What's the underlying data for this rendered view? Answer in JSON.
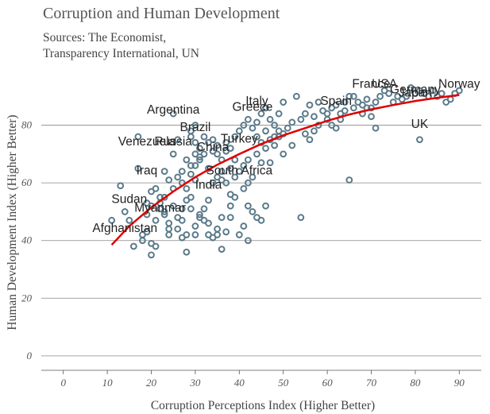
{
  "header": {
    "title": "Corruption and Human Development",
    "subtitle_lines": [
      "Sources: The Economist,",
      "Transparency International, UN"
    ]
  },
  "chart_data": {
    "type": "scatter",
    "title": "Corruption and Human Development",
    "subtitle": "Sources: The Economist, Transparency International, UN",
    "xlabel": "Corruption Perceptions Index (Higher Better)",
    "ylabel": "Human Development Index (Higher Better)",
    "xlim": [
      -5,
      95
    ],
    "ylim": [
      -5,
      100
    ],
    "xticks": [
      0,
      10,
      20,
      30,
      40,
      50,
      60,
      70,
      80,
      90
    ],
    "yticks": [
      0,
      20,
      40,
      60,
      80
    ],
    "grid": "horizontal",
    "colors": {
      "points": "#5b7a8a",
      "trend": "#dd0000",
      "grid": "#888888"
    },
    "points": [
      [
        17,
        76
      ],
      [
        20,
        52
      ],
      [
        19,
        49
      ],
      [
        21,
        47
      ],
      [
        22,
        51
      ],
      [
        23,
        50
      ],
      [
        25,
        52
      ],
      [
        24,
        44
      ],
      [
        22,
        55
      ],
      [
        20,
        57
      ],
      [
        19,
        53
      ],
      [
        18,
        42
      ],
      [
        18,
        40
      ],
      [
        20,
        39
      ],
      [
        21,
        38
      ],
      [
        20,
        35
      ],
      [
        19,
        43
      ],
      [
        23,
        64
      ],
      [
        25,
        70
      ],
      [
        26,
        75
      ],
      [
        27,
        60
      ],
      [
        28,
        58
      ],
      [
        29,
        63
      ],
      [
        30,
        66
      ],
      [
        31,
        68
      ],
      [
        32,
        70
      ],
      [
        30,
        61
      ],
      [
        29,
        55
      ],
      [
        27,
        47
      ],
      [
        26,
        44
      ],
      [
        27,
        41
      ],
      [
        28,
        42
      ],
      [
        30,
        45
      ],
      [
        31,
        48
      ],
      [
        32,
        51
      ],
      [
        33,
        54
      ],
      [
        30,
        74
      ],
      [
        29,
        78
      ],
      [
        30,
        80
      ],
      [
        31,
        72
      ],
      [
        33,
        74
      ],
      [
        34,
        71
      ],
      [
        35,
        73
      ],
      [
        36,
        68
      ],
      [
        37,
        74
      ],
      [
        38,
        72
      ],
      [
        39,
        76
      ],
      [
        40,
        78
      ],
      [
        41,
        80
      ],
      [
        42,
        82
      ],
      [
        43,
        79
      ],
      [
        44,
        81
      ],
      [
        45,
        84
      ],
      [
        46,
        86
      ],
      [
        47,
        82
      ],
      [
        48,
        80
      ],
      [
        49,
        84
      ],
      [
        50,
        88
      ],
      [
        42,
        68
      ],
      [
        44,
        70
      ],
      [
        45,
        67
      ],
      [
        46,
        72
      ],
      [
        47,
        75
      ],
      [
        48,
        76
      ],
      [
        49,
        78
      ],
      [
        50,
        77
      ],
      [
        51,
        79
      ],
      [
        52,
        81
      ],
      [
        53,
        90
      ],
      [
        54,
        82
      ],
      [
        55,
        84
      ],
      [
        56,
        87
      ],
      [
        57,
        83
      ],
      [
        58,
        88
      ],
      [
        59,
        85
      ],
      [
        60,
        84
      ],
      [
        61,
        86
      ],
      [
        62,
        87
      ],
      [
        63,
        84
      ],
      [
        64,
        88
      ],
      [
        65,
        90
      ],
      [
        66,
        86
      ],
      [
        67,
        88
      ],
      [
        68,
        87
      ],
      [
        69,
        89
      ],
      [
        70,
        86
      ],
      [
        71,
        88
      ],
      [
        72,
        90
      ],
      [
        73,
        92
      ],
      [
        74,
        91
      ],
      [
        75,
        88
      ],
      [
        76,
        90
      ],
      [
        77,
        89
      ],
      [
        78,
        90
      ],
      [
        79,
        93
      ],
      [
        80,
        91
      ],
      [
        81,
        92
      ],
      [
        82,
        91
      ],
      [
        83,
        90
      ],
      [
        84,
        92
      ],
      [
        85,
        90
      ],
      [
        86,
        91
      ],
      [
        87,
        88
      ],
      [
        88,
        89
      ],
      [
        89,
        91
      ],
      [
        90,
        92
      ],
      [
        81,
        75
      ],
      [
        71,
        79
      ],
      [
        65,
        61
      ],
      [
        62,
        79
      ],
      [
        56,
        75
      ],
      [
        55,
        77
      ],
      [
        52,
        73
      ],
      [
        47,
        67
      ],
      [
        45,
        47
      ],
      [
        42,
        40
      ],
      [
        41,
        45
      ],
      [
        40,
        42
      ],
      [
        38,
        48
      ],
      [
        37,
        43
      ],
      [
        35,
        44
      ],
      [
        34,
        41
      ],
      [
        33,
        42
      ],
      [
        32,
        47
      ],
      [
        36,
        48
      ],
      [
        38,
        52
      ],
      [
        39,
        55
      ],
      [
        41,
        58
      ],
      [
        42,
        52
      ],
      [
        43,
        50
      ],
      [
        44,
        48
      ],
      [
        46,
        52
      ],
      [
        54,
        48
      ],
      [
        33,
        65
      ],
      [
        34,
        60
      ],
      [
        35,
        62
      ],
      [
        36,
        64
      ],
      [
        37,
        60
      ],
      [
        38,
        56
      ],
      [
        39,
        62
      ],
      [
        40,
        64
      ],
      [
        41,
        66
      ],
      [
        42,
        60
      ],
      [
        43,
        62
      ],
      [
        28,
        68
      ],
      [
        29,
        66
      ],
      [
        27,
        64
      ],
      [
        26,
        62
      ],
      [
        25,
        58
      ],
      [
        24,
        61
      ],
      [
        23,
        55
      ],
      [
        22,
        53
      ],
      [
        21,
        58
      ],
      [
        13,
        59
      ],
      [
        17,
        65
      ],
      [
        11,
        47
      ],
      [
        14,
        50
      ],
      [
        15,
        47
      ],
      [
        25,
        84
      ],
      [
        29,
        76
      ],
      [
        16,
        38
      ],
      [
        24,
        42
      ],
      [
        36,
        61
      ],
      [
        30,
        70
      ],
      [
        31,
        69
      ],
      [
        32,
        76
      ],
      [
        34,
        75
      ],
      [
        35,
        70
      ],
      [
        37,
        71
      ],
      [
        38,
        65
      ],
      [
        39,
        68
      ],
      [
        31,
        49
      ],
      [
        33,
        46
      ],
      [
        28,
        54
      ],
      [
        29,
        51
      ],
      [
        26,
        48
      ],
      [
        27,
        51
      ],
      [
        24,
        46
      ],
      [
        23,
        49
      ],
      [
        30,
        42
      ],
      [
        35,
        42
      ],
      [
        36,
        37
      ],
      [
        28,
        36
      ],
      [
        44,
        76
      ],
      [
        45,
        74
      ],
      [
        46,
        78
      ],
      [
        48,
        73
      ],
      [
        49,
        76
      ],
      [
        50,
        70
      ],
      [
        57,
        78
      ],
      [
        58,
        80
      ],
      [
        60,
        82
      ],
      [
        61,
        80
      ],
      [
        63,
        82
      ],
      [
        64,
        85
      ],
      [
        66,
        90
      ],
      [
        68,
        84
      ],
      [
        69,
        86
      ],
      [
        70,
        83
      ]
    ],
    "trend_line": [
      [
        11,
        38.5
      ],
      [
        15,
        45
      ],
      [
        20,
        51.5
      ],
      [
        25,
        57
      ],
      [
        30,
        62
      ],
      [
        35,
        66.3
      ],
      [
        40,
        70
      ],
      [
        45,
        73.5
      ],
      [
        50,
        76.5
      ],
      [
        55,
        79
      ],
      [
        60,
        81.5
      ],
      [
        65,
        83.7
      ],
      [
        70,
        85.5
      ],
      [
        75,
        87
      ],
      [
        80,
        88.4
      ],
      [
        85,
        89.5
      ],
      [
        90,
        90.5
      ]
    ],
    "annotations": [
      {
        "text": "Argentina",
        "x": 25,
        "y": 84
      },
      {
        "text": "Greece",
        "x": 43,
        "y": 85
      },
      {
        "text": "France",
        "x": 70,
        "y": 93
      },
      {
        "text": "USA",
        "x": 73,
        "y": 93
      },
      {
        "text": "Norway",
        "x": 90,
        "y": 93
      },
      {
        "text": "Germany",
        "x": 80,
        "y": 91
      },
      {
        "text": "Japan",
        "x": 80,
        "y": 90
      },
      {
        "text": "Spain",
        "x": 62,
        "y": 87
      },
      {
        "text": "Italy",
        "x": 44,
        "y": 87
      },
      {
        "text": "Brazil",
        "x": 30,
        "y": 78
      },
      {
        "text": "UK",
        "x": 81,
        "y": 79
      },
      {
        "text": "Venezuela",
        "x": 19,
        "y": 73
      },
      {
        "text": "Russia",
        "x": 25,
        "y": 73
      },
      {
        "text": "China",
        "x": 34,
        "y": 71
      },
      {
        "text": "Turkey",
        "x": 40,
        "y": 74
      },
      {
        "text": "South Africa",
        "x": 40,
        "y": 63
      },
      {
        "text": "Iraq",
        "x": 19,
        "y": 63
      },
      {
        "text": "India",
        "x": 33,
        "y": 58
      },
      {
        "text": "Sudan",
        "x": 15,
        "y": 53
      },
      {
        "text": "Myanmar",
        "x": 22,
        "y": 50
      },
      {
        "text": "Afghanistan",
        "x": 14,
        "y": 43
      }
    ]
  }
}
